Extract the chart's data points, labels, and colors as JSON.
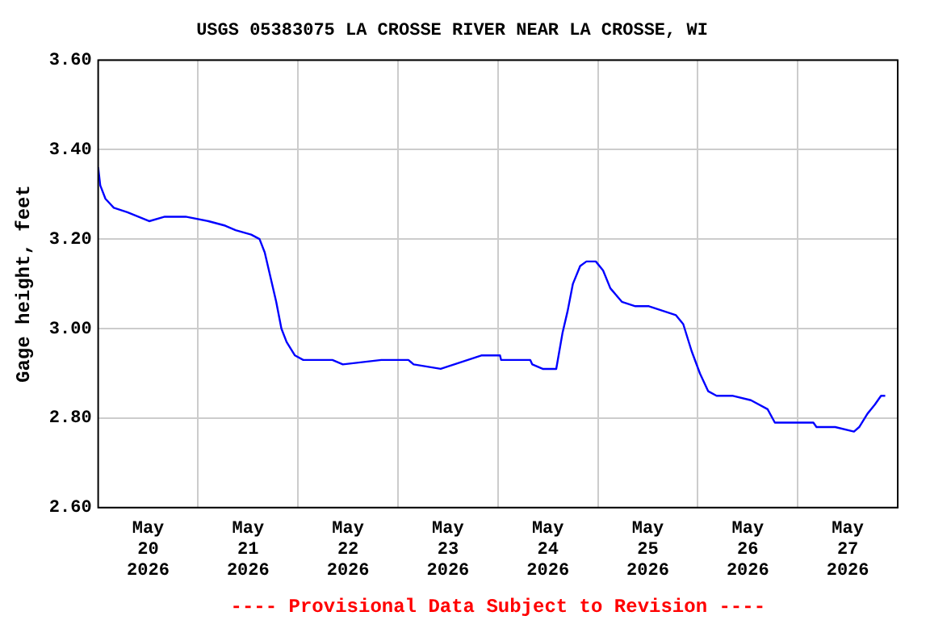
{
  "chart_data": {
    "type": "line",
    "title": "USGS 05383075 LA CROSSE RIVER NEAR LA CROSSE, WI",
    "ylabel": "Gage height, feet",
    "annotations": [
      "---- Provisional Data Subject to Revision ----"
    ],
    "x": [
      "2026-05-20T00:00",
      "2026-05-20T00:30",
      "2026-05-20T01:45",
      "2026-05-20T03:45",
      "2026-05-20T07:00",
      "2026-05-20T12:15",
      "2026-05-20T16:00",
      "2026-05-20T21:00",
      "2026-05-21T02:30",
      "2026-05-21T06:30",
      "2026-05-21T09:00",
      "2026-05-21T12:45",
      "2026-05-21T14:45",
      "2026-05-21T16:00",
      "2026-05-21T17:30",
      "2026-05-21T18:45",
      "2026-05-21T20:00",
      "2026-05-21T21:15",
      "2026-05-21T23:15",
      "2026-05-22T01:15",
      "2026-05-22T08:15",
      "2026-05-22T10:45",
      "2026-05-22T20:00",
      "2026-05-23T02:30",
      "2026-05-23T03:45",
      "2026-05-23T10:15",
      "2026-05-23T13:30",
      "2026-05-23T16:45",
      "2026-05-23T20:00",
      "2026-05-24T00:30",
      "2026-05-24T00:45",
      "2026-05-24T07:45",
      "2026-05-24T08:15",
      "2026-05-24T10:45",
      "2026-05-24T14:00",
      "2026-05-24T15:30",
      "2026-05-24T16:45",
      "2026-05-24T18:00",
      "2026-05-24T19:45",
      "2026-05-24T21:15",
      "2026-05-24T23:30",
      "2026-05-25T01:15",
      "2026-05-25T03:00",
      "2026-05-25T05:45",
      "2026-05-25T09:00",
      "2026-05-25T12:15",
      "2026-05-25T15:30",
      "2026-05-25T18:45",
      "2026-05-25T20:30",
      "2026-05-25T22:30",
      "2026-05-26T00:30",
      "2026-05-26T02:30",
      "2026-05-26T04:30",
      "2026-05-26T08:15",
      "2026-05-26T12:45",
      "2026-05-26T16:45",
      "2026-05-26T18:30",
      "2026-05-27T03:45",
      "2026-05-27T04:30",
      "2026-05-27T09:00",
      "2026-05-27T13:30",
      "2026-05-27T14:45",
      "2026-05-27T16:45",
      "2026-05-27T18:30",
      "2026-05-27T20:00",
      "2026-05-27T21:00"
    ],
    "series": [
      {
        "color": "#0000ff",
        "values": [
          3.36,
          3.32,
          3.29,
          3.27,
          3.26,
          3.24,
          3.25,
          3.25,
          3.24,
          3.23,
          3.22,
          3.21,
          3.2,
          3.17,
          3.11,
          3.06,
          3.0,
          2.97,
          2.94,
          2.93,
          2.93,
          2.92,
          2.93,
          2.93,
          2.92,
          2.91,
          2.92,
          2.93,
          2.94,
          2.94,
          2.93,
          2.93,
          2.92,
          2.91,
          2.91,
          2.99,
          3.04,
          3.1,
          3.14,
          3.15,
          3.15,
          3.13,
          3.09,
          3.06,
          3.05,
          3.05,
          3.04,
          3.03,
          3.01,
          2.95,
          2.9,
          2.86,
          2.85,
          2.85,
          2.84,
          2.82,
          2.79,
          2.79,
          2.78,
          2.78,
          2.77,
          2.78,
          2.81,
          2.83,
          2.85,
          2.85
        ]
      }
    ],
    "xlim": [
      "2026-05-20T00:00",
      "2026-05-28T00:00"
    ],
    "xticks": [
      {
        "value": "2026-05-20T12:00",
        "label": "May 20 2026"
      },
      {
        "value": "2026-05-21T00:00",
        "label": null
      },
      {
        "value": "2026-05-21T12:00",
        "label": "May 21 2026"
      },
      {
        "value": "2026-05-22T00:00",
        "label": null
      },
      {
        "value": "2026-05-22T12:00",
        "label": "May 22 2026"
      },
      {
        "value": "2026-05-23T00:00",
        "label": null
      },
      {
        "value": "2026-05-23T12:00",
        "label": "May 23 2026"
      },
      {
        "value": "2026-05-24T00:00",
        "label": null
      },
      {
        "value": "2026-05-24T12:00",
        "label": "May 24 2026"
      },
      {
        "value": "2026-05-25T00:00",
        "label": null
      },
      {
        "value": "2026-05-25T12:00",
        "label": "May 25 2026"
      },
      {
        "value": "2026-05-26T00:00",
        "label": null
      },
      {
        "value": "2026-05-26T12:00",
        "label": "May 26 2026"
      },
      {
        "value": "2026-05-27T00:00",
        "label": null
      },
      {
        "value": "2026-05-27T12:00",
        "label": "May 27 2026"
      }
    ],
    "ylim": [
      2.6,
      3.6
    ],
    "yticks": [
      {
        "value": 2.6,
        "label": "2.60"
      },
      {
        "value": 2.8,
        "label": "2.80"
      },
      {
        "value": 3.0,
        "label": "3.00"
      },
      {
        "value": 3.2,
        "label": "3.20"
      },
      {
        "value": 3.4,
        "label": "3.40"
      },
      {
        "value": 3.6,
        "label": "3.60"
      }
    ],
    "grid": true,
    "legend": false,
    "marker": "none",
    "line_style": "solid"
  }
}
